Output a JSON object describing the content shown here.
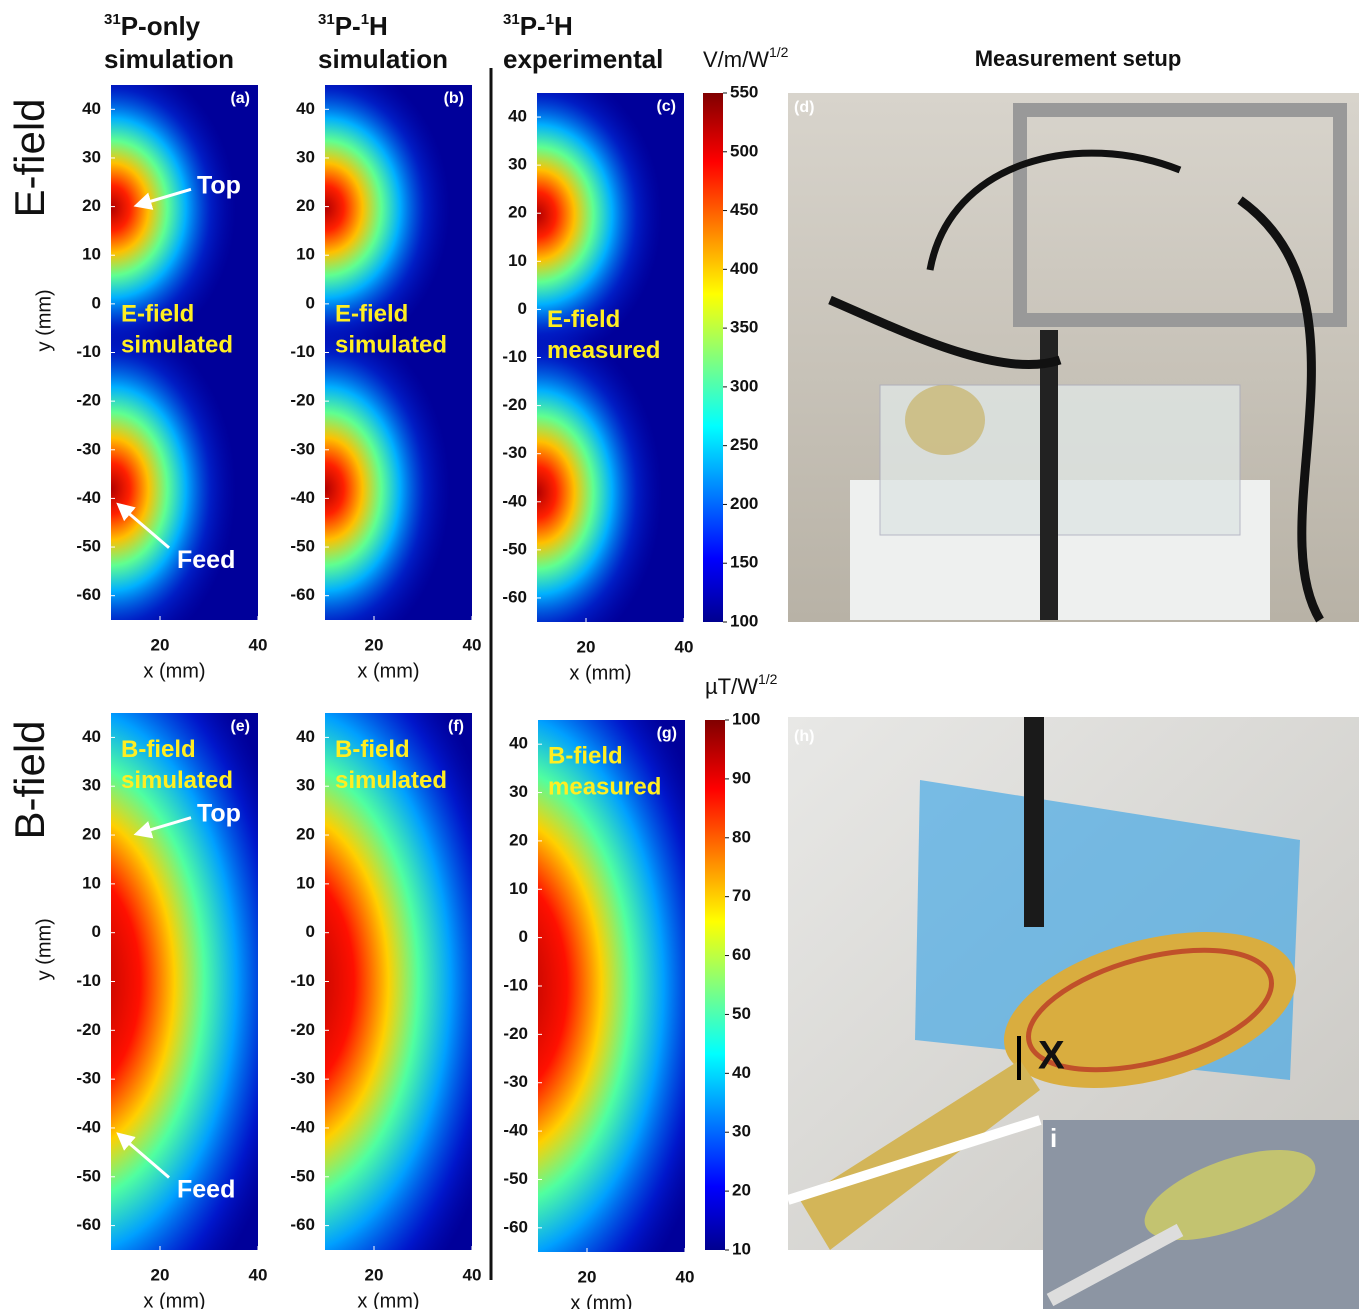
{
  "column_titles": [
    {
      "line1": [
        {
          "text": "31",
          "sup": true
        },
        {
          "text": "P-only"
        }
      ],
      "line2": "simulation"
    },
    {
      "line1": [
        {
          "text": "31",
          "sup": true
        },
        {
          "text": "P-"
        },
        {
          "text": "1",
          "sup": true
        },
        {
          "text": "H"
        }
      ],
      "line2": "simulation"
    },
    {
      "line1": [
        {
          "text": "31",
          "sup": true
        },
        {
          "text": "P-"
        },
        {
          "text": "1",
          "sup": true
        },
        {
          "text": "H"
        }
      ],
      "line2": "experimental"
    }
  ],
  "row_labels": [
    "E-field",
    "B-field"
  ],
  "axes": {
    "x_label": "x (mm)",
    "y_label": "y (mm)",
    "xlim": [
      10,
      40
    ],
    "xticks": [
      20,
      40
    ],
    "ylim": [
      -65,
      45
    ],
    "yticks": [
      40,
      30,
      20,
      10,
      0,
      -10,
      -20,
      -30,
      -40,
      -50,
      -60
    ]
  },
  "panels": [
    {
      "label": "(a)",
      "field": "E",
      "text": [
        "E-field",
        "simulated"
      ],
      "annotations": [
        "Top",
        "Feed"
      ]
    },
    {
      "label": "(b)",
      "field": "E",
      "text": [
        "E-field",
        "simulated"
      ],
      "annotations": []
    },
    {
      "label": "(c)",
      "field": "E",
      "text": [
        "E-field",
        "measured"
      ],
      "annotations": []
    },
    {
      "label": "(e)",
      "field": "B",
      "text": [
        "B-field",
        "simulated"
      ],
      "annotations": [
        "Top",
        "Feed"
      ]
    },
    {
      "label": "(f)",
      "field": "B",
      "text": [
        "B-field",
        "simulated"
      ],
      "annotations": []
    },
    {
      "label": "(g)",
      "field": "B",
      "text": [
        "B-field",
        "measured"
      ],
      "annotations": []
    }
  ],
  "colorbars": [
    {
      "unit": {
        "base": "V/m/W",
        "sup": "1/2"
      },
      "lim": [
        100,
        550
      ],
      "ticks": [
        100,
        150,
        200,
        250,
        300,
        350,
        400,
        450,
        500,
        550
      ]
    },
    {
      "unit": {
        "base": "µT/W",
        "sup": "1/2"
      },
      "lim": [
        10,
        100
      ],
      "ticks": [
        10,
        20,
        30,
        40,
        50,
        60,
        70,
        80,
        90,
        100
      ]
    }
  ],
  "photos": {
    "title": "Measurement setup",
    "labels": [
      "(d)",
      "(h)"
    ],
    "marker": "X",
    "inset": "i"
  }
}
